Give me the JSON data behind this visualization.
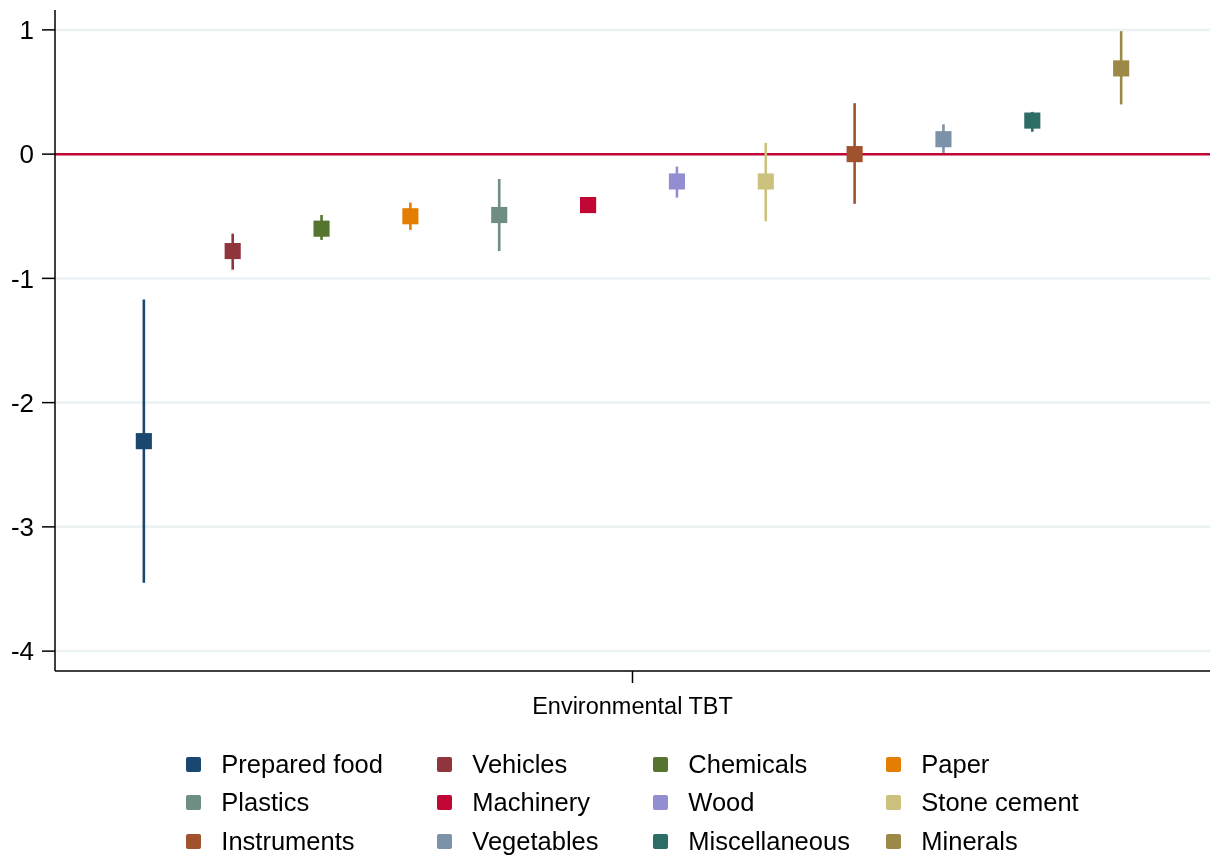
{
  "chart_data": {
    "type": "scatter",
    "categories": [
      "Environmental TBT"
    ],
    "series": [
      {
        "name": "Prepared food",
        "color": "#1a476f",
        "values": [
          -2.31
        ],
        "errors": [
          [
            -3.45,
            -1.17
          ]
        ]
      },
      {
        "name": "Vehicles",
        "color": "#90353b",
        "values": [
          -0.78
        ],
        "errors": [
          [
            -0.93,
            -0.64
          ]
        ]
      },
      {
        "name": "Chemicals",
        "color": "#55752f",
        "values": [
          -0.6
        ],
        "errors": [
          [
            -0.69,
            -0.49
          ]
        ]
      },
      {
        "name": "Paper",
        "color": "#e37e00",
        "values": [
          -0.5
        ],
        "errors": [
          [
            -0.61,
            -0.39
          ]
        ]
      },
      {
        "name": "Plastics",
        "color": "#6e8e84",
        "values": [
          -0.49
        ],
        "errors": [
          [
            -0.78,
            -0.2
          ]
        ]
      },
      {
        "name": "Machinery",
        "color": "#c10534",
        "values": [
          -0.41
        ],
        "errors": [
          null
        ]
      },
      {
        "name": "Wood",
        "color": "#938dd2",
        "values": [
          -0.22
        ],
        "errors": [
          [
            -0.35,
            -0.1
          ]
        ]
      },
      {
        "name": "Stone cement",
        "color": "#cac27e",
        "values": [
          -0.22
        ],
        "errors": [
          [
            -0.54,
            0.09
          ]
        ]
      },
      {
        "name": "Instruments",
        "color": "#a0522d",
        "values": [
          0.0
        ],
        "errors": [
          [
            -0.4,
            0.41
          ]
        ]
      },
      {
        "name": "Vegetables",
        "color": "#7b92a8",
        "values": [
          0.12
        ],
        "errors": [
          [
            0.01,
            0.24
          ]
        ]
      },
      {
        "name": "Miscellaneous",
        "color": "#2d6d66",
        "values": [
          0.27
        ],
        "errors": [
          [
            0.18,
            0.34
          ]
        ]
      },
      {
        "name": "Minerals",
        "color": "#9c8847",
        "values": [
          0.69
        ],
        "errors": [
          [
            0.4,
            0.99
          ]
        ]
      }
    ],
    "ylim": [
      -4.16,
      1.16
    ],
    "yticks": [
      -4,
      -3,
      -2,
      -1,
      0,
      1
    ],
    "grid": "y",
    "legend": "bottom",
    "marker": "square",
    "ref_lines": [
      {
        "axis": "y",
        "value": 0,
        "color": "#c10534"
      }
    ]
  }
}
